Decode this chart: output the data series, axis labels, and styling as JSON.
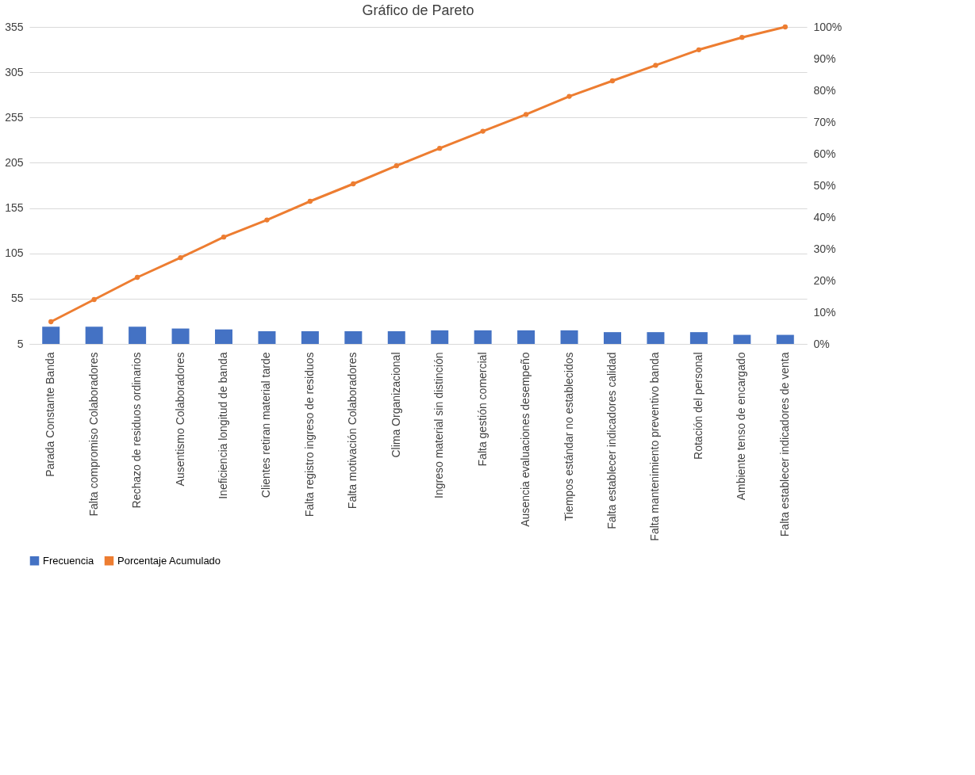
{
  "chart_data": {
    "type": "bar",
    "title": "Gráfico de Pareto",
    "categories": [
      "Parada Constante Banda",
      "Falta compromiso Colaboradores",
      "Rechazo de residuos ordinarios",
      "Ausentismo Colaboradores",
      "Ineficiencia longitud de banda",
      "Clientes retiran material tarde",
      "Falta registro ingreso de residuos",
      "Falta motivación Colaboradores",
      "Clima Organizacional",
      "Ingreso material sin distinción",
      "Falta gestión comercial",
      "Ausencia evaluaciones desempeño",
      "Tiempos estándar no establecidos",
      "Falta establecer indicadores calidad",
      "Falta mantenimiento preventivo banda",
      "Rotación del personal",
      "Ambiente tenso de encargado",
      "Falta establecer indicadores de venta"
    ],
    "series": [
      {
        "name": "Frecuencia",
        "color": "#4472c4",
        "values": [
          24,
          24,
          24,
          22,
          21,
          19,
          19,
          19,
          19,
          20,
          20,
          20,
          20,
          18,
          18,
          18,
          15,
          15
        ]
      },
      {
        "name": "Porcentaje Acumulado",
        "type": "line",
        "axis": "y2",
        "color": "#ed7d31",
        "marker": "circle",
        "values": [
          7,
          14,
          21,
          27.2,
          33.7,
          39.1,
          45,
          50.5,
          56.2,
          61.7,
          67.1,
          72.4,
          78.1,
          83,
          87.9,
          92.8,
          96.7,
          100
        ]
      }
    ],
    "ylim": [
      5,
      355
    ],
    "yticks": [
      5,
      55,
      105,
      155,
      205,
      255,
      305,
      355
    ],
    "y2lim": [
      0,
      100
    ],
    "y2ticks": [
      {
        "value": 0,
        "label": "0%"
      },
      {
        "value": 10,
        "label": "10%"
      },
      {
        "value": 20,
        "label": "20%"
      },
      {
        "value": 30,
        "label": "30%"
      },
      {
        "value": 40,
        "label": "40%"
      },
      {
        "value": 50,
        "label": "50%"
      },
      {
        "value": 60,
        "label": "60%"
      },
      {
        "value": 70,
        "label": "70%"
      },
      {
        "value": 80,
        "label": "80%"
      },
      {
        "value": 90,
        "label": "90%"
      },
      {
        "value": 100,
        "label": "100%"
      }
    ],
    "grid": "y",
    "legend": "bottom"
  }
}
